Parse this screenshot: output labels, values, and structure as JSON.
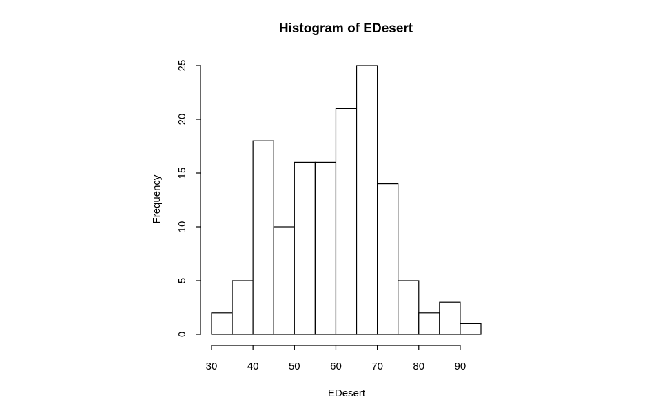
{
  "chart_data": {
    "type": "bar",
    "title": "Histogram of EDesert",
    "xlabel": "EDesert",
    "ylabel": "Frequency",
    "bin_width": 5,
    "bins": [
      {
        "start": 30,
        "end": 35,
        "count": 2
      },
      {
        "start": 35,
        "end": 40,
        "count": 5
      },
      {
        "start": 40,
        "end": 45,
        "count": 18
      },
      {
        "start": 45,
        "end": 50,
        "count": 10
      },
      {
        "start": 50,
        "end": 55,
        "count": 16
      },
      {
        "start": 55,
        "end": 60,
        "count": 16
      },
      {
        "start": 60,
        "end": 65,
        "count": 21
      },
      {
        "start": 65,
        "end": 70,
        "count": 25
      },
      {
        "start": 70,
        "end": 75,
        "count": 14
      },
      {
        "start": 75,
        "end": 80,
        "count": 5
      },
      {
        "start": 80,
        "end": 85,
        "count": 2
      },
      {
        "start": 85,
        "end": 90,
        "count": 3
      },
      {
        "start": 90,
        "end": 95,
        "count": 1
      }
    ],
    "xlim": [
      30,
      95
    ],
    "ylim": [
      0,
      25
    ],
    "x_ticks": [
      30,
      40,
      50,
      60,
      70,
      80,
      90
    ],
    "y_ticks": [
      0,
      5,
      10,
      15,
      20,
      25
    ],
    "grid": false,
    "bar_fill": "#ffffff",
    "bar_stroke": "#000000"
  }
}
